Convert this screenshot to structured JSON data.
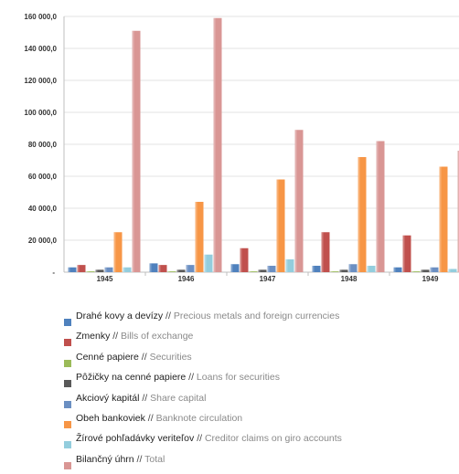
{
  "chart_data": {
    "type": "bar",
    "categories": [
      "1945",
      "1946",
      "1947",
      "1948",
      "1949"
    ],
    "y_ticks": [
      "160 000,0",
      "140 000,0",
      "120 000,0",
      "100 000,0",
      "80 000,0",
      "60 000,0",
      "40 000,0",
      "20 000,0",
      "-"
    ],
    "ylim": [
      0,
      160000
    ],
    "grid": "horizontal",
    "legend_position": "bottom",
    "separator": "//",
    "series": [
      {
        "name_sk": "Drahé kovy a devízy",
        "name_en": "Precious metals and foreign currencies",
        "color": "#4f81bd",
        "values": [
          3000,
          5500,
          5000,
          4000,
          3000
        ]
      },
      {
        "name_sk": "Zmenky",
        "name_en": "Bills of exchange",
        "color": "#c0504d",
        "values": [
          4500,
          4500,
          15000,
          25000,
          23000
        ]
      },
      {
        "name_sk": "Cenné papiere",
        "name_en": "Securities",
        "color": "#9bbb59",
        "values": [
          500,
          500,
          500,
          500,
          500
        ]
      },
      {
        "name_sk": "Pôžičky na cenné papiere",
        "name_en": "Loans for securities",
        "color": "#595959",
        "values": [
          1500,
          1500,
          1500,
          1500,
          1500
        ]
      },
      {
        "name_sk": "Akciový kapitál",
        "name_en": "Share capital",
        "color": "#6b8fc2",
        "values": [
          3000,
          4500,
          4000,
          5000,
          3000
        ]
      },
      {
        "name_sk": "Obeh bankoviek",
        "name_en": "Banknote circulation",
        "color": "#f79646",
        "values": [
          25000,
          44000,
          58000,
          72000,
          66000
        ]
      },
      {
        "name_sk": "Žírové pohľadávky veriteľov",
        "name_en": "Creditor claims on giro accounts",
        "color": "#93cddd",
        "values": [
          3000,
          11000,
          8000,
          4000,
          2000
        ]
      },
      {
        "name_sk": "Bilančný úhrn",
        "name_en": "Total",
        "color": "#d99694",
        "values": [
          151000,
          159000,
          89000,
          82000,
          76000
        ]
      }
    ]
  }
}
